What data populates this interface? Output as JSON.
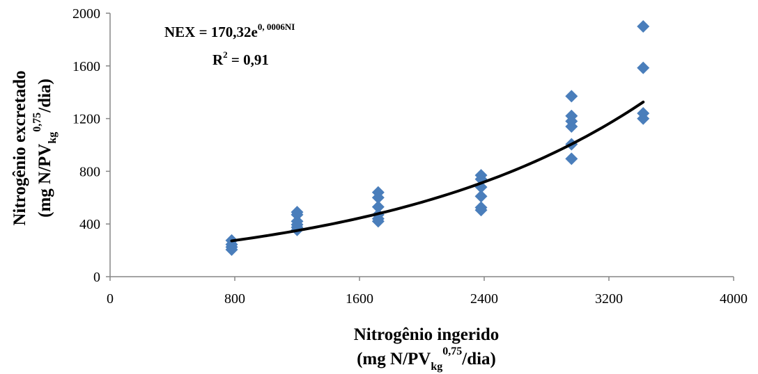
{
  "chart_data": {
    "type": "scatter",
    "xlim": [
      0,
      4000
    ],
    "ylim": [
      0,
      2000
    ],
    "x_ticks": [
      "0",
      "800",
      "1600",
      "2400",
      "3200",
      "4000"
    ],
    "y_ticks": [
      "0",
      "400",
      "800",
      "1200",
      "1600",
      "2000"
    ],
    "grid": false,
    "marker_color": "#4a7ebb",
    "trend_color": "#000000",
    "points": [
      {
        "x": 780,
        "y": 275
      },
      {
        "x": 780,
        "y": 245
      },
      {
        "x": 780,
        "y": 225
      },
      {
        "x": 780,
        "y": 205
      },
      {
        "x": 1200,
        "y": 490
      },
      {
        "x": 1200,
        "y": 470
      },
      {
        "x": 1200,
        "y": 420
      },
      {
        "x": 1200,
        "y": 395
      },
      {
        "x": 1200,
        "y": 375
      },
      {
        "x": 1200,
        "y": 355
      },
      {
        "x": 1720,
        "y": 640
      },
      {
        "x": 1720,
        "y": 600
      },
      {
        "x": 1720,
        "y": 530
      },
      {
        "x": 1720,
        "y": 470
      },
      {
        "x": 1720,
        "y": 440
      },
      {
        "x": 1720,
        "y": 420
      },
      {
        "x": 2380,
        "y": 770
      },
      {
        "x": 2380,
        "y": 740
      },
      {
        "x": 2380,
        "y": 680
      },
      {
        "x": 2380,
        "y": 610
      },
      {
        "x": 2380,
        "y": 525
      },
      {
        "x": 2380,
        "y": 505
      },
      {
        "x": 2960,
        "y": 1370
      },
      {
        "x": 2960,
        "y": 1220
      },
      {
        "x": 2960,
        "y": 1180
      },
      {
        "x": 2960,
        "y": 1140
      },
      {
        "x": 2960,
        "y": 1005
      },
      {
        "x": 2960,
        "y": 895
      },
      {
        "x": 3420,
        "y": 1900
      },
      {
        "x": 3420,
        "y": 1585
      },
      {
        "x": 3420,
        "y": 1240
      },
      {
        "x": 3420,
        "y": 1200
      }
    ],
    "trendline": {
      "type": "exponential",
      "a": 170.32,
      "b": 0.0006,
      "x_range": [
        780,
        3420
      ]
    },
    "equation_main": "NEX = 170,32e",
    "equation_exponent": "0, 0006NI",
    "r2_prefix": "R",
    "r2_superscript": "2",
    "r2_value": " = 0,91",
    "xlabel": {
      "line1": "Nitrogênio ingerido",
      "line2_a": "(mg N/PV",
      "line2_sub": "kg",
      "line2_sup": "0,75",
      "line2_b": "/dia)"
    },
    "ylabel": {
      "line1": "Nitrogênio excretado",
      "line2_a": "(mg N/PV",
      "line2_sub": "kg",
      "line2_sup": "0,75",
      "line2_b": "/dia)"
    }
  }
}
